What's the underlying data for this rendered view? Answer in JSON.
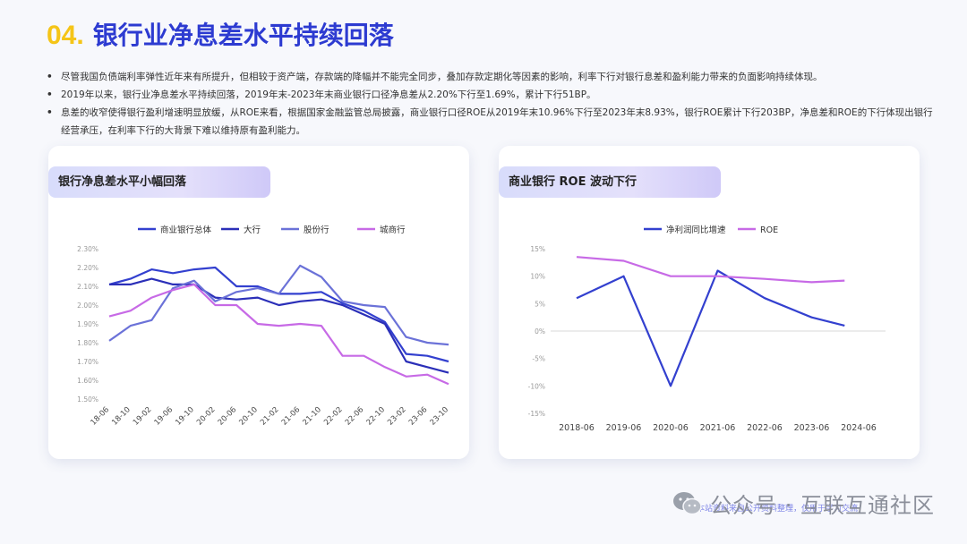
{
  "header": {
    "number": "04.",
    "title": "银行业净息差水平持续回落"
  },
  "bullets": [
    "尽管我国负债端利率弹性近年来有所提升，但相较于资产端，存款端的降幅并不能完全同步，叠加存款定期化等因素的影响，利率下行对银行息差和盈利能力带来的负面影响持续体现。",
    "2019年以来，银行业净息差水平持续回落，2019年末-2023年末商业银行口径净息差从2.20%下行至1.69%，累计下行51BP。",
    "息差的收窄使得银行盈利增速明显放缓，从ROE来看，根据国家金融监管总局披露，商业银行口径ROE从2019年末10.96%下行至2023年末8.93%，银行ROE累计下行203BP，净息差和ROE的下行体现出银行经营承压，在利率下行的大背景下难以维持原有盈利能力。"
  ],
  "cards": {
    "left_title": "银行净息差水平小幅回落",
    "right_title": "商业银行 ROE 波动下行"
  },
  "watermark": {
    "text": "公众号 · 互联互通社区",
    "small": "本站资料来自公开资料整理，仅用于学习交流"
  },
  "chart_data": [
    {
      "type": "line",
      "title": "",
      "x": [
        "18-06",
        "18-10",
        "19-02",
        "19-06",
        "19-10",
        "20-02",
        "20-06",
        "20-10",
        "21-02",
        "21-06",
        "21-10",
        "22-02",
        "22-06",
        "22-10",
        "23-02",
        "23-06",
        "23-10"
      ],
      "ylim": [
        1.5,
        2.3
      ],
      "yticks": [
        "2.30%",
        "2.20%",
        "2.10%",
        "2.00%",
        "1.90%",
        "1.80%",
        "1.70%",
        "1.60%",
        "1.50%"
      ],
      "legend": "top",
      "series": [
        {
          "name": "商业银行总体",
          "color": "#3340cf",
          "values": [
            2.11,
            2.14,
            2.19,
            2.17,
            2.19,
            2.2,
            2.1,
            2.1,
            2.06,
            2.06,
            2.07,
            2.01,
            1.97,
            1.91,
            1.74,
            1.73,
            1.7
          ]
        },
        {
          "name": "大行",
          "color": "#2b2fb8",
          "values": [
            2.11,
            2.11,
            2.14,
            2.11,
            2.11,
            2.04,
            2.03,
            2.04,
            2.0,
            2.02,
            2.03,
            2.0,
            1.95,
            1.9,
            1.7,
            1.67,
            1.64
          ]
        },
        {
          "name": "股份行",
          "color": "#6b72d8",
          "values": [
            1.81,
            1.89,
            1.92,
            2.09,
            2.13,
            2.02,
            2.07,
            2.09,
            2.06,
            2.21,
            2.15,
            2.02,
            2.0,
            1.99,
            1.83,
            1.8,
            1.79
          ]
        },
        {
          "name": "城商行",
          "color": "#c76ae6",
          "values": [
            1.94,
            1.97,
            2.04,
            2.08,
            2.11,
            2.0,
            2.0,
            1.9,
            1.89,
            1.9,
            1.89,
            1.73,
            1.73,
            1.67,
            1.62,
            1.63,
            1.58
          ]
        }
      ]
    },
    {
      "type": "line",
      "title": "",
      "x": [
        "2018-06",
        "2019-06",
        "2020-06",
        "2021-06",
        "2022-06",
        "2023-06",
        "2024-06"
      ],
      "ylim": [
        -15,
        15
      ],
      "yticks": [
        "15%",
        "10%",
        "5%",
        "0%",
        "-5%",
        "-10%",
        "-15%"
      ],
      "legend": "top",
      "series": [
        {
          "name": "净利润同比增速",
          "color": "#3340cf",
          "points": [
            [
              0,
              6
            ],
            [
              1,
              10
            ],
            [
              2,
              -10
            ],
            [
              3,
              11
            ],
            [
              4,
              6
            ],
            [
              5,
              2.5
            ],
            [
              5.7,
              1
            ]
          ]
        },
        {
          "name": "ROE",
          "color": "#c76ae6",
          "points": [
            [
              0,
              13.5
            ],
            [
              1,
              12.8
            ],
            [
              2,
              10
            ],
            [
              3,
              10
            ],
            [
              4,
              9.5
            ],
            [
              5,
              8.9
            ],
            [
              5.7,
              9.2
            ]
          ]
        }
      ]
    }
  ]
}
